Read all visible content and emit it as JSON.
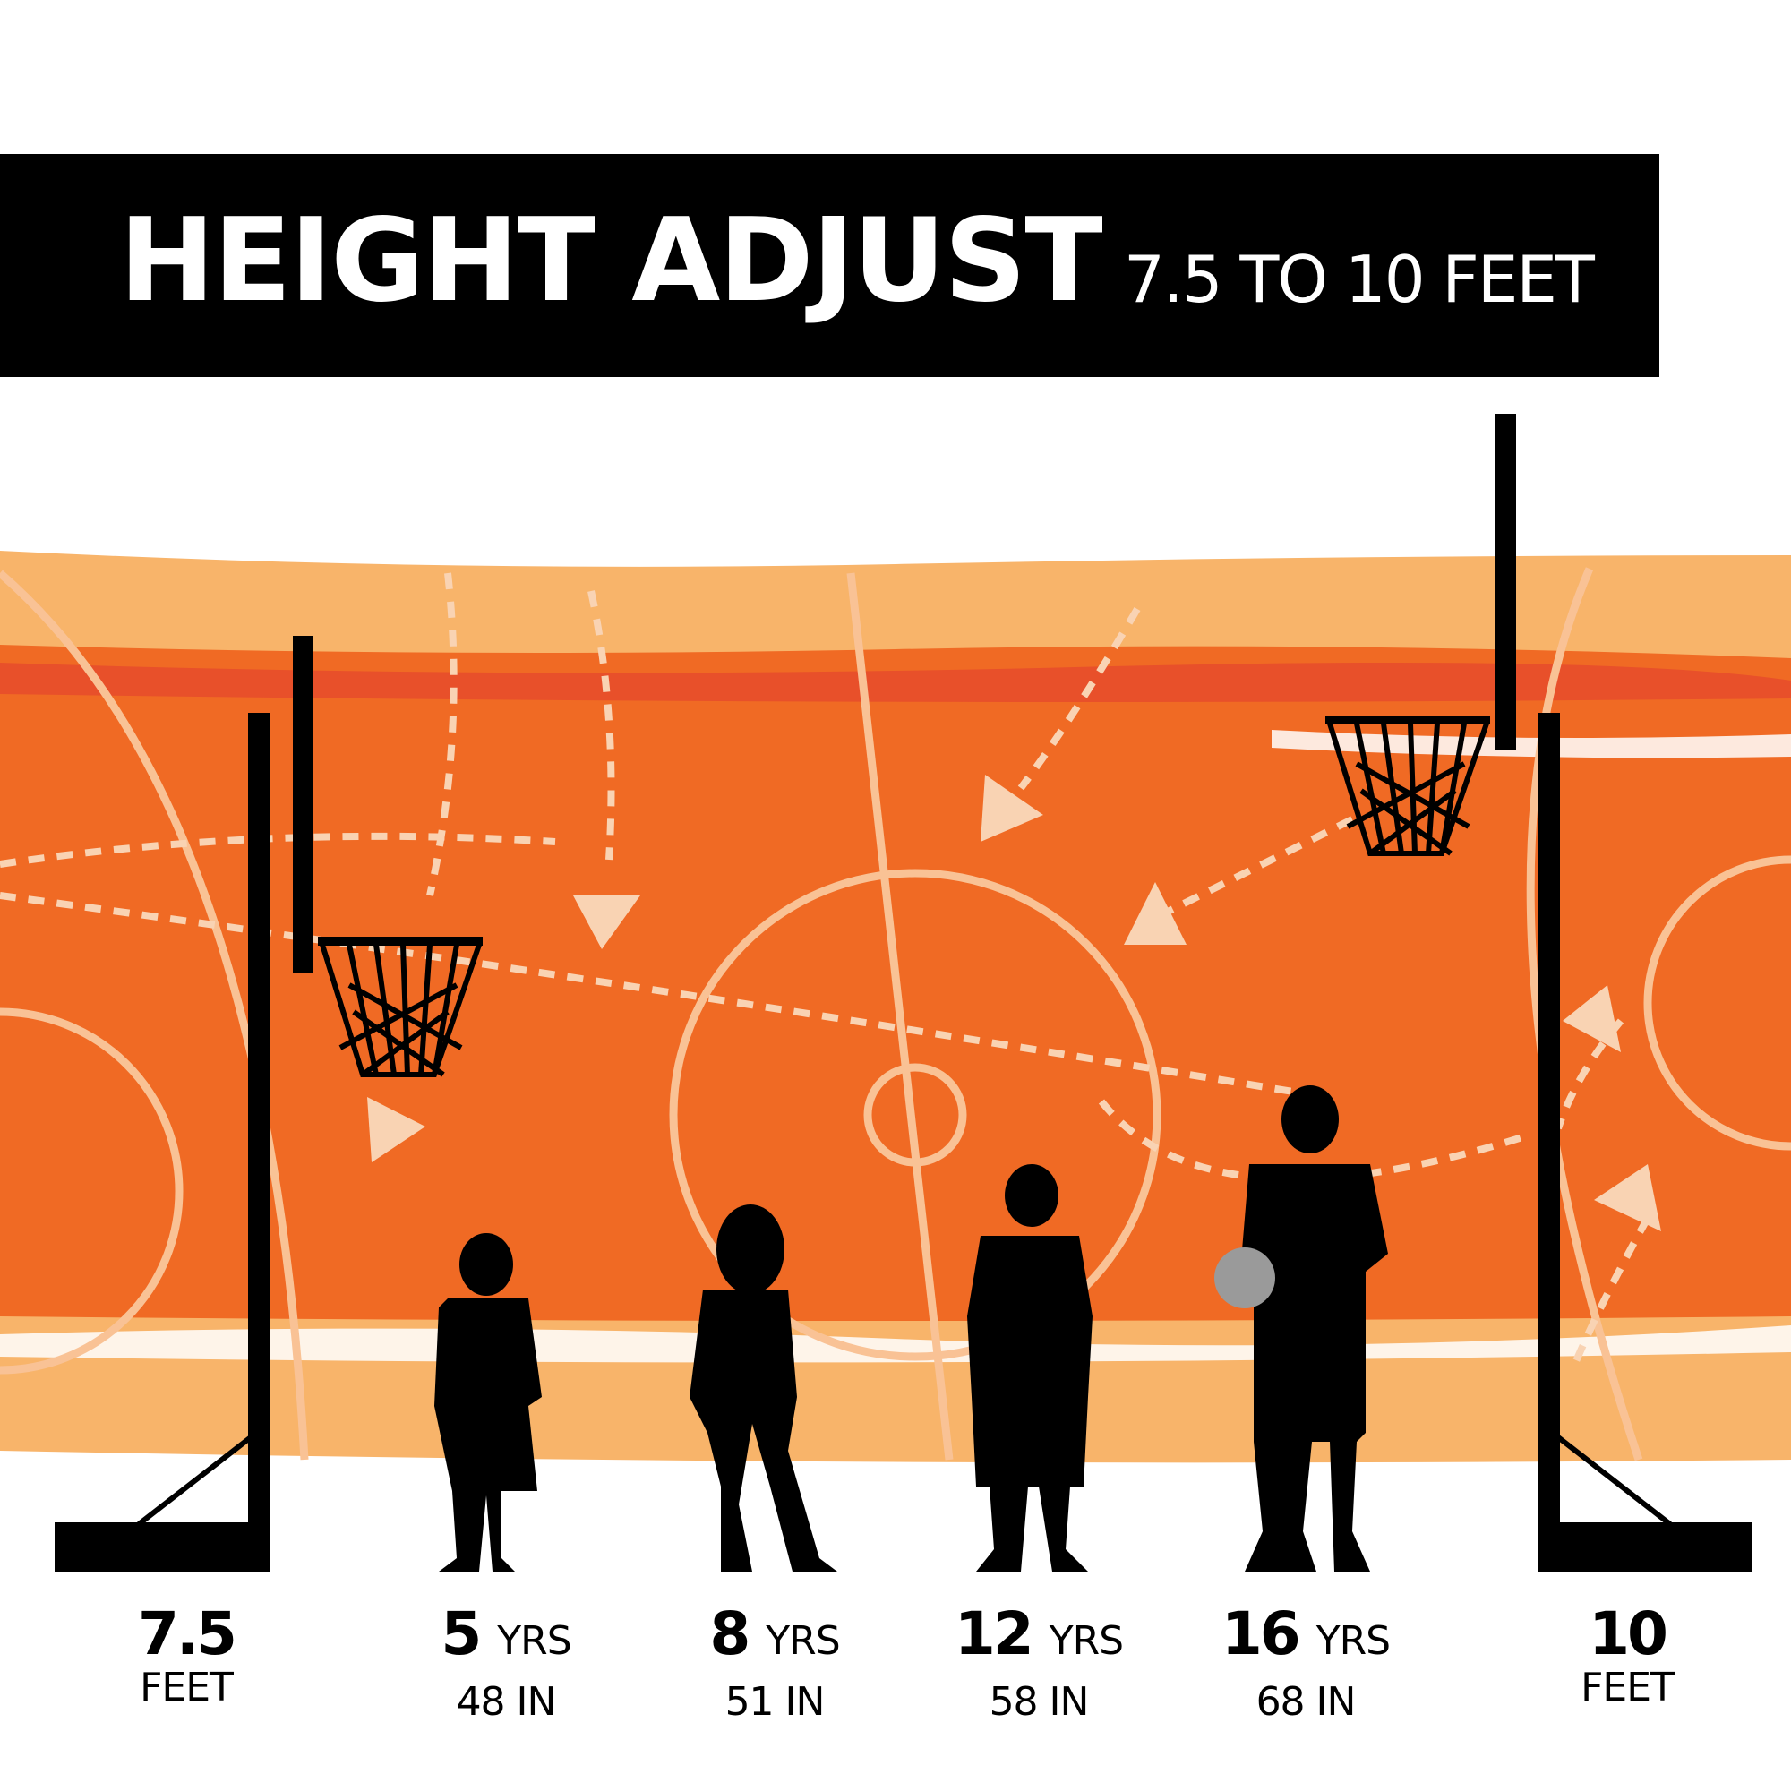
{
  "header": {
    "title": "HEIGHT ADJUST",
    "subtitle": "7.5 TO 10 FEET"
  },
  "colors": {
    "banner": "#000000",
    "court_dark": "#f06a24",
    "court_light": "#f8b46a",
    "court_lines": "#f9c295",
    "silhouette": "#000000",
    "ball": "#9a9a9a"
  },
  "hoops": [
    {
      "height_value": "7.5",
      "height_unit": "FEET"
    },
    {
      "height_value": "10",
      "height_unit": "FEET"
    }
  ],
  "people": [
    {
      "age": "5",
      "age_unit": "YRS",
      "height": "48 IN"
    },
    {
      "age": "8",
      "age_unit": "YRS",
      "height": "51 IN"
    },
    {
      "age": "12",
      "age_unit": "YRS",
      "height": "58 IN"
    },
    {
      "age": "16",
      "age_unit": "YRS",
      "height": "68 IN"
    }
  ]
}
